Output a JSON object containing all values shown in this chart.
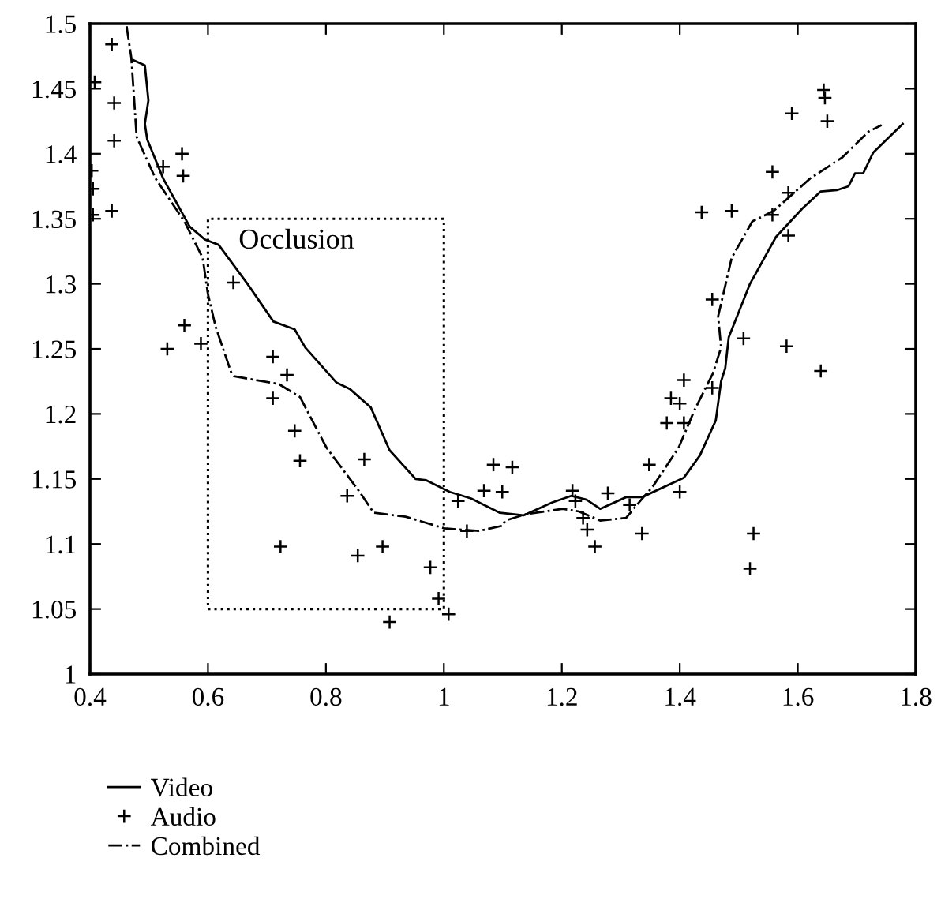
{
  "chart_data": {
    "type": "line",
    "xlim": [
      0.4,
      1.8
    ],
    "ylim": [
      1,
      1.5
    ],
    "xticks": [
      0.4,
      0.6,
      0.8,
      1,
      1.2,
      1.4,
      1.6,
      1.8
    ],
    "yticks": [
      1,
      1.05,
      1.1,
      1.15,
      1.2,
      1.25,
      1.3,
      1.35,
      1.4,
      1.45,
      1.5
    ],
    "grid": false,
    "legend": "bottom left",
    "annotations": [
      "Occlusion"
    ],
    "series": [
      {
        "name": "Video",
        "line_style": "solid",
        "marker": "none",
        "color": "#000000",
        "x": [
          0.473,
          0.493,
          0.499,
          0.493,
          0.497,
          0.524,
          0.569,
          0.595,
          0.618,
          0.667,
          0.711,
          0.747,
          0.765,
          0.818,
          0.841,
          0.876,
          0.908,
          0.952,
          0.97,
          1.01,
          1.046,
          1.095,
          1.135,
          1.184,
          1.216,
          1.242,
          1.265,
          1.309,
          1.336,
          1.407,
          1.434,
          1.461,
          1.47,
          1.477,
          1.483,
          1.519,
          1.563,
          1.608,
          1.639,
          1.666,
          1.686,
          1.697,
          1.711,
          1.728,
          1.778
        ],
        "values": [
          1.472,
          1.468,
          1.441,
          1.423,
          1.411,
          1.381,
          1.344,
          1.334,
          1.33,
          1.3,
          1.271,
          1.265,
          1.251,
          1.224,
          1.219,
          1.205,
          1.172,
          1.15,
          1.149,
          1.14,
          1.135,
          1.124,
          1.122,
          1.132,
          1.137,
          1.134,
          1.127,
          1.136,
          1.136,
          1.151,
          1.168,
          1.195,
          1.225,
          1.235,
          1.259,
          1.3,
          1.336,
          1.358,
          1.371,
          1.372,
          1.375,
          1.385,
          1.385,
          1.401,
          1.423
        ]
      },
      {
        "name": "Audio",
        "type": "scatter",
        "marker": "cross",
        "color": "#000000",
        "x": [
          0.437,
          0.408,
          0.441,
          0.441,
          0.403,
          0.405,
          0.405,
          0.437,
          0.556,
          0.524,
          0.558,
          0.643,
          0.56,
          0.531,
          0.588,
          0.71,
          0.734,
          0.71,
          0.747,
          0.756,
          0.865,
          0.836,
          0.723,
          0.854,
          0.896,
          0.977,
          0.991,
          0.908,
          1.008,
          1.024,
          1.039,
          1.084,
          1.068,
          1.099,
          1.116,
          1.218,
          1.223,
          1.236,
          1.243,
          1.256,
          1.278,
          1.315,
          1.336,
          1.348,
          1.378,
          1.385,
          1.4,
          1.407,
          1.407,
          1.4,
          1.455,
          1.525,
          1.519,
          1.639,
          1.644,
          1.646,
          1.59,
          1.65,
          1.557,
          1.584,
          1.437,
          1.488,
          1.557,
          1.584,
          1.455,
          1.508,
          1.581
        ],
        "values": [
          1.484,
          1.455,
          1.439,
          1.41,
          1.387,
          1.373,
          1.353,
          1.356,
          1.4,
          1.39,
          1.383,
          1.301,
          1.268,
          1.25,
          1.254,
          1.244,
          1.23,
          1.212,
          1.187,
          1.164,
          1.165,
          1.137,
          1.098,
          1.091,
          1.098,
          1.082,
          1.058,
          1.04,
          1.046,
          1.133,
          1.11,
          1.161,
          1.141,
          1.14,
          1.159,
          1.141,
          1.133,
          1.12,
          1.111,
          1.098,
          1.139,
          1.13,
          1.108,
          1.161,
          1.193,
          1.212,
          1.208,
          1.226,
          1.193,
          1.14,
          1.22,
          1.108,
          1.081,
          1.233,
          1.449,
          1.443,
          1.431,
          1.425,
          1.386,
          1.37,
          1.355,
          1.356,
          1.353,
          1.337,
          1.288,
          1.258,
          1.252
        ]
      },
      {
        "name": "Combined",
        "line_style": "dashdot",
        "marker": "none",
        "color": "#000000",
        "x": [
          0.462,
          0.47,
          0.475,
          0.479,
          0.511,
          0.56,
          0.591,
          0.6,
          0.613,
          0.64,
          0.644,
          0.72,
          0.756,
          0.801,
          0.854,
          0.881,
          0.935,
          1.001,
          1.059,
          1.099,
          1.104,
          1.14,
          1.202,
          1.229,
          1.265,
          1.309,
          1.327,
          1.354,
          1.398,
          1.425,
          1.456,
          1.47,
          1.465,
          1.488,
          1.523,
          1.559,
          1.621,
          1.675,
          1.72,
          1.742
        ],
        "values": [
          1.498,
          1.474,
          1.441,
          1.413,
          1.381,
          1.348,
          1.32,
          1.292,
          1.267,
          1.231,
          1.229,
          1.223,
          1.213,
          1.174,
          1.142,
          1.124,
          1.121,
          1.112,
          1.11,
          1.114,
          1.118,
          1.123,
          1.127,
          1.125,
          1.118,
          1.12,
          1.13,
          1.144,
          1.174,
          1.203,
          1.231,
          1.251,
          1.275,
          1.32,
          1.348,
          1.356,
          1.381,
          1.397,
          1.417,
          1.422
        ]
      }
    ]
  }
}
